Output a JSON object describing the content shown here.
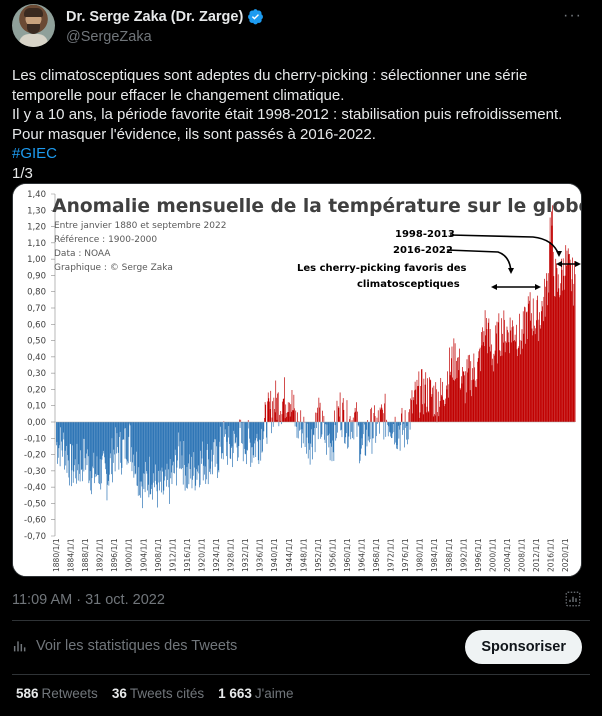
{
  "author": {
    "display_name": "Dr. Serge Zaka (Dr. Zarge)",
    "handle": "@SergeZaka"
  },
  "more_icon": "ellipsis-icon",
  "tweet": {
    "lines": [
      "Les climatosceptiques sont adeptes du cherry-picking : sélectionner une série",
      "temporelle pour effacer le changement climatique.",
      "Il y a 10 ans, la période favorite était 1998-2012 : stabilisation puis refroidissement.",
      "Pour masquer l'évidence, ils sont passés à 2016-2022."
    ],
    "hashtag": "#GIEC",
    "thread_counter": "1/3"
  },
  "chart_data": {
    "type": "bar",
    "title": "Anomalie mensuelle de la température sur le globe",
    "notes": [
      "Entre janvier 1880 et septembre 2022",
      "Référence : 1900-2000",
      "Data : NOAA",
      "Graphique : © Serge Zaka"
    ],
    "annotations": [
      "1998-2013",
      "2016-2022",
      "Les cherry-picking favoris des",
      "climatosceptiques"
    ],
    "yticks": [
      "1,40",
      "1,30",
      "1,20",
      "1,10",
      "1,00",
      "0,90",
      "0,80",
      "0,70",
      "0,60",
      "0,50",
      "0,40",
      "0,30",
      "0,20",
      "0,10",
      "0,00",
      "-0,10",
      "-0,20",
      "-0,30",
      "-0,40",
      "-0,50",
      "-0,60",
      "-0,70"
    ],
    "ylim": [
      -0.7,
      1.4
    ],
    "xlim": [
      1880,
      2022.7
    ],
    "xticks": [
      "1880/1/1",
      "1884/1/1",
      "1888/1/1",
      "1892/1/1",
      "1896/1/1",
      "1900/1/1",
      "1904/1/1",
      "1908/1/1",
      "1912/1/1",
      "1916/1/1",
      "1920/1/1",
      "1924/1/1",
      "1928/1/1",
      "1932/1/1",
      "1936/1/1",
      "1940/1/1",
      "1944/1/1",
      "1948/1/1",
      "1952/1/1",
      "1956/1/1",
      "1960/1/1",
      "1964/1/1",
      "1968/1/1",
      "1972/1/1",
      "1976/1/1",
      "1980/1/1",
      "1984/1/1",
      "1988/1/1",
      "1992/1/1",
      "1996/1/1",
      "2000/1/1",
      "2004/1/1",
      "2008/1/1",
      "2012/1/1",
      "2016/1/1",
      "2020/1/1"
    ],
    "series": [
      {
        "x": [
          1880,
          1882,
          1884,
          1886,
          1888,
          1890,
          1892,
          1894,
          1896,
          1898,
          1900,
          1902,
          1904,
          1906,
          1908,
          1910,
          1912,
          1914,
          1916,
          1918,
          1920,
          1922,
          1924,
          1926,
          1928,
          1930,
          1932,
          1934,
          1936,
          1938,
          1940,
          1942,
          1944,
          1946,
          1948,
          1950,
          1952,
          1954,
          1956,
          1958,
          1960,
          1962,
          1964,
          1966,
          1968,
          1970,
          1972,
          1974,
          1976,
          1978,
          1980,
          1982,
          1984,
          1986,
          1988,
          1990,
          1992,
          1994,
          1996,
          1998,
          2000,
          2002,
          2004,
          2006,
          2008,
          2010,
          2012,
          2014,
          2016,
          2018,
          2020,
          2022
        ],
        "values": [
          -0.14,
          -0.15,
          -0.28,
          -0.28,
          -0.21,
          -0.33,
          -0.3,
          -0.34,
          -0.18,
          -0.18,
          -0.1,
          -0.27,
          -0.4,
          -0.31,
          -0.42,
          -0.42,
          -0.34,
          -0.17,
          -0.33,
          -0.3,
          -0.24,
          -0.24,
          -0.24,
          -0.12,
          -0.18,
          -0.11,
          -0.12,
          -0.15,
          -0.1,
          0.02,
          0.12,
          0.12,
          0.18,
          -0.02,
          -0.05,
          -0.12,
          0.02,
          -0.1,
          -0.12,
          0.08,
          -0.02,
          0.04,
          -0.18,
          -0.05,
          -0.04,
          0.03,
          0.01,
          -0.05,
          -0.05,
          0.1,
          0.18,
          0.18,
          0.15,
          0.15,
          0.32,
          0.4,
          0.22,
          0.3,
          0.33,
          0.6,
          0.4,
          0.55,
          0.55,
          0.58,
          0.5,
          0.68,
          0.62,
          0.72,
          0.98,
          0.82,
          0.98,
          0.86
        ]
      }
    ],
    "colors": {
      "positive": "#c00000",
      "negative": "#2e75b6"
    }
  },
  "timestamp": "11:09 AM · 31 oct. 2022",
  "stats_link_label": "Voir les statistiques des Tweets",
  "sponsor_button_label": "Sponsoriser",
  "metrics": {
    "retweets_count": "586",
    "retweets_label": "Retweets",
    "quotes_count": "36",
    "quotes_label": "Tweets cités",
    "likes_count": "1 663",
    "likes_label": "J'aime"
  }
}
